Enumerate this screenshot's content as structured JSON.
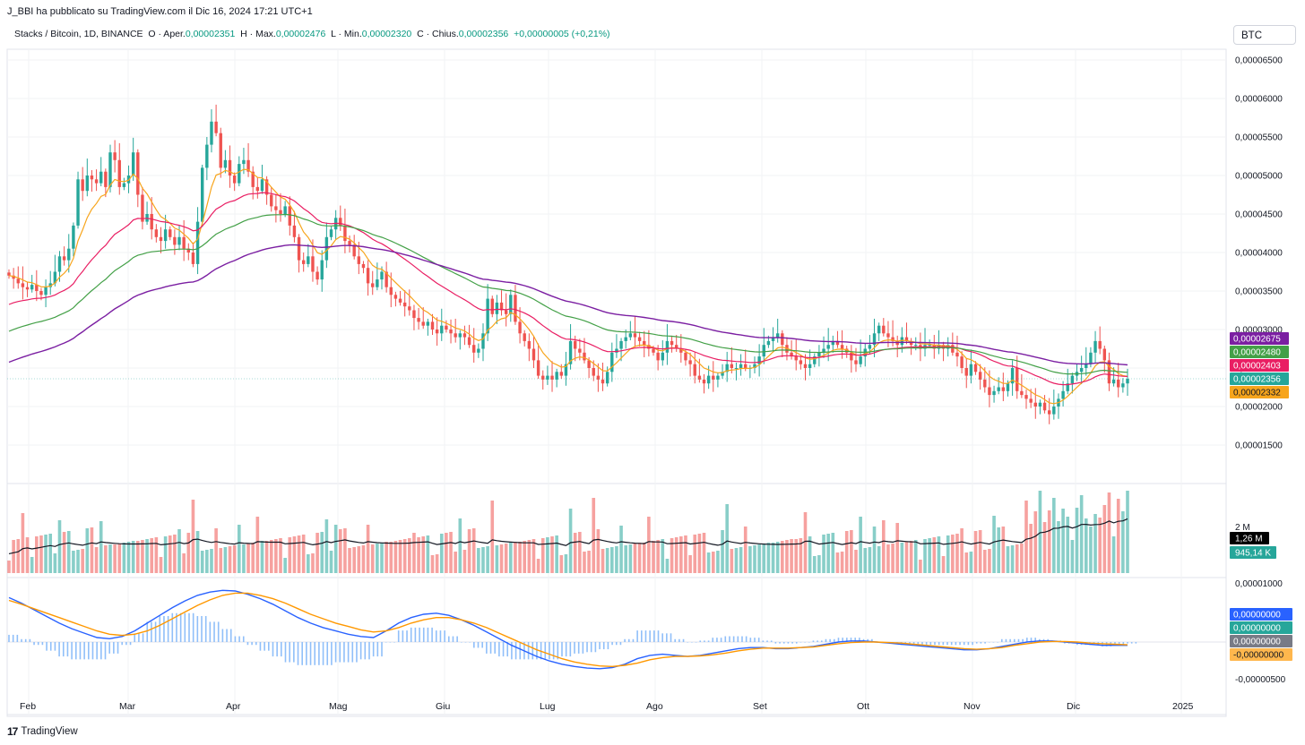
{
  "header": {
    "published_by": "J_BBI ha pubblicato su TradingView.com il Dic 16, 2024 17:21 UTC+1"
  },
  "symbol": {
    "name": "Stacks / Bitcoin, 1D, BINANCE",
    "open_label": "O · Aper.",
    "open": "0,00002351",
    "high_label": "H · Max.",
    "high": "0,00002476",
    "low_label": "L · Min.",
    "low": "0,00002320",
    "close_label": "C · Chius.",
    "close": "0,00002356",
    "change": "+0,00000005 (+0,21%)"
  },
  "currency_button": "BTC",
  "footer": {
    "logo": "17",
    "brand": "TradingView"
  },
  "colors": {
    "up": "#26a69a",
    "down": "#ef5350",
    "ma_orange": "#f7a51c",
    "ma_red": "#e91e63",
    "ma_green": "#43a047",
    "ma_purple": "#7b1fa2",
    "macd": "#2962ff",
    "signal": "#ff9800",
    "hist": "#90bff9"
  },
  "chart_data": {
    "type": "candlestick",
    "x_labels": [
      "Feb",
      "Mar",
      "Apr",
      "Mag",
      "Giu",
      "Lug",
      "Ago",
      "Set",
      "Ott",
      "Nov",
      "Dic",
      "2025"
    ],
    "price_axis": {
      "ticks": [
        "0,00006500",
        "0,00006000",
        "0,00005500",
        "0,00005000",
        "0,00004500",
        "0,00004000",
        "0,00003500",
        "0,00003000",
        "0,00002500",
        "0,00002000",
        "0,00001500"
      ],
      "tick_values": [
        6.5,
        6.0,
        5.5,
        5.0,
        4.5,
        4.0,
        3.5,
        3.0,
        2.5,
        2.0,
        1.5
      ],
      "unit_scale": "1e-5"
    },
    "closes": [
      3.7,
      3.66,
      3.6,
      3.55,
      3.52,
      3.58,
      3.5,
      3.45,
      3.55,
      3.6,
      3.75,
      3.95,
      3.9,
      4.05,
      4.35,
      4.95,
      4.8,
      5.0,
      4.95,
      4.9,
      5.05,
      4.85,
      5.3,
      5.2,
      4.85,
      4.9,
      5.0,
      5.3,
      4.75,
      4.4,
      4.5,
      4.3,
      4.2,
      4.15,
      4.3,
      4.2,
      4.1,
      4.2,
      4.05,
      4.0,
      3.85,
      4.4,
      5.1,
      5.4,
      5.7,
      5.55,
      5.1,
      5.2,
      5.0,
      4.9,
      5.15,
      5.2,
      5.05,
      4.85,
      4.8,
      4.95,
      4.75,
      4.6,
      4.55,
      4.5,
      4.6,
      4.35,
      4.2,
      3.9,
      3.85,
      3.95,
      3.75,
      3.65,
      3.9,
      4.2,
      4.3,
      4.45,
      4.35,
      4.15,
      4.1,
      3.95,
      3.85,
      3.8,
      3.6,
      3.55,
      3.65,
      3.75,
      3.55,
      3.45,
      3.4,
      3.35,
      3.3,
      3.25,
      3.15,
      3.1,
      3.05,
      3.1,
      3.0,
      2.95,
      3.05,
      3.0,
      2.95,
      2.9,
      2.95,
      2.9,
      2.8,
      2.7,
      2.75,
      2.95,
      3.4,
      3.2,
      3.35,
      3.25,
      3.2,
      3.45,
      3.1,
      2.95,
      2.85,
      2.75,
      2.6,
      2.4,
      2.35,
      2.4,
      2.35,
      2.45,
      2.4,
      2.55,
      2.85,
      2.75,
      2.7,
      2.6,
      2.5,
      2.4,
      2.35,
      2.3,
      2.45,
      2.7,
      2.75,
      2.85,
      2.9,
      2.95,
      2.9,
      2.85,
      2.8,
      2.75,
      2.7,
      2.6,
      2.7,
      2.85,
      2.8,
      2.75,
      2.7,
      2.6,
      2.55,
      2.4,
      2.35,
      2.3,
      2.4,
      2.35,
      2.4,
      2.45,
      2.55,
      2.5,
      2.5,
      2.55,
      2.5,
      2.5,
      2.55,
      2.65,
      2.8,
      2.85,
      2.9,
      2.95,
      2.8,
      2.7,
      2.65,
      2.6,
      2.55,
      2.5,
      2.55,
      2.65,
      2.7,
      2.75,
      2.8,
      2.85,
      2.8,
      2.75,
      2.7,
      2.6,
      2.55,
      2.65,
      2.75,
      2.8,
      2.95,
      3.05,
      2.95,
      2.9,
      2.85,
      2.8,
      2.9,
      2.85,
      2.8,
      2.8,
      2.75,
      2.8,
      2.8,
      2.75,
      2.8,
      2.75,
      2.8,
      2.7,
      2.65,
      2.5,
      2.4,
      2.55,
      2.45,
      2.35,
      2.25,
      2.15,
      2.2,
      2.25,
      2.2,
      2.3,
      2.5,
      2.2,
      2.15,
      2.1,
      2.05,
      2.0,
      2.05,
      1.95,
      1.9,
      2.0,
      2.1,
      2.2,
      2.3,
      2.4,
      2.45,
      2.5,
      2.55,
      2.7,
      2.85,
      2.75,
      2.6,
      2.3,
      2.35,
      2.25,
      2.3,
      2.36
    ],
    "volume_axis": {
      "label": "2 M"
    },
    "volume_ma_value": "1,26 M",
    "volume_value": "945,14 K",
    "ma_values": {
      "purple": "0,00002675",
      "green": "0,00002480",
      "red": "0,00002403",
      "teal": "0,00002356",
      "orange": "0,00002332"
    },
    "macd_axis": {
      "ticks": [
        "0,00001000",
        "0,00000000",
        "-0,00000500"
      ]
    },
    "macd_badges": [
      "0,00000000",
      "0,00000000",
      "0,00000000",
      "-0,00000000"
    ],
    "macd_values": [
      0.8,
      0.7,
      0.58,
      0.46,
      0.34,
      0.24,
      0.16,
      0.08,
      0.06,
      0.1,
      0.2,
      0.34,
      0.48,
      0.62,
      0.74,
      0.84,
      0.9,
      0.93,
      0.92,
      0.86,
      0.78,
      0.68,
      0.56,
      0.44,
      0.34,
      0.26,
      0.2,
      0.14,
      0.1,
      0.08,
      0.2,
      0.34,
      0.44,
      0.5,
      0.52,
      0.48,
      0.4,
      0.3,
      0.18,
      0.06,
      -0.06,
      -0.16,
      -0.26,
      -0.34,
      -0.4,
      -0.44,
      -0.47,
      -0.48,
      -0.46,
      -0.4,
      -0.3,
      -0.24,
      -0.22,
      -0.24,
      -0.26,
      -0.24,
      -0.2,
      -0.16,
      -0.12,
      -0.1,
      -0.1,
      -0.12,
      -0.12,
      -0.1,
      -0.08,
      -0.04,
      0.0,
      0.02,
      0.02,
      0.0,
      -0.02,
      -0.04,
      -0.06,
      -0.08,
      -0.1,
      -0.12,
      -0.14,
      -0.14,
      -0.12,
      -0.08,
      -0.04,
      0.0,
      0.02,
      0.02,
      0.0,
      -0.02,
      -0.04,
      -0.06,
      -0.06,
      -0.06
    ],
    "signal_values": [
      0.75,
      0.68,
      0.6,
      0.52,
      0.44,
      0.36,
      0.28,
      0.2,
      0.14,
      0.12,
      0.14,
      0.2,
      0.3,
      0.42,
      0.54,
      0.66,
      0.76,
      0.84,
      0.88,
      0.88,
      0.84,
      0.78,
      0.7,
      0.6,
      0.5,
      0.42,
      0.34,
      0.28,
      0.22,
      0.18,
      0.2,
      0.26,
      0.34,
      0.4,
      0.44,
      0.44,
      0.4,
      0.34,
      0.26,
      0.16,
      0.06,
      -0.04,
      -0.14,
      -0.22,
      -0.3,
      -0.36,
      -0.4,
      -0.43,
      -0.44,
      -0.42,
      -0.38,
      -0.32,
      -0.28,
      -0.26,
      -0.26,
      -0.25,
      -0.23,
      -0.2,
      -0.16,
      -0.13,
      -0.11,
      -0.11,
      -0.11,
      -0.1,
      -0.09,
      -0.06,
      -0.03,
      -0.01,
      0.0,
      0.0,
      -0.01,
      -0.02,
      -0.04,
      -0.06,
      -0.08,
      -0.1,
      -0.12,
      -0.13,
      -0.12,
      -0.1,
      -0.06,
      -0.03,
      0.0,
      0.01,
      0.01,
      0.0,
      -0.02,
      -0.03,
      -0.04,
      -0.05
    ]
  }
}
